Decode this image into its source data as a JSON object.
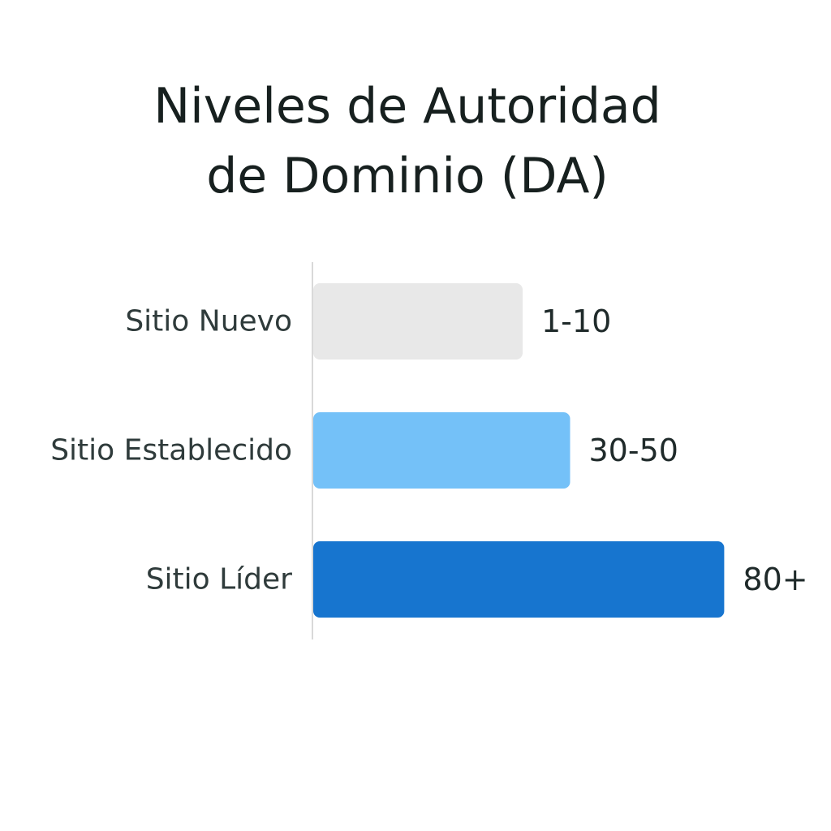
{
  "chart_data": {
    "type": "bar",
    "orientation": "horizontal",
    "title_lines": [
      "Niveles de Autoridad",
      "de Dominio (DA)"
    ],
    "categories": [
      "Sitio Nuevo",
      "Sitio Establecido",
      "Sitio Líder"
    ],
    "value_labels": [
      "1-10",
      "30-50",
      "80+"
    ],
    "values": [
      10,
      50,
      80
    ],
    "colors": [
      "#e8e8e8",
      "#74c1f8",
      "#1775cf"
    ],
    "axis_color": "#d9d9d9",
    "grid": false,
    "legend": "none"
  }
}
